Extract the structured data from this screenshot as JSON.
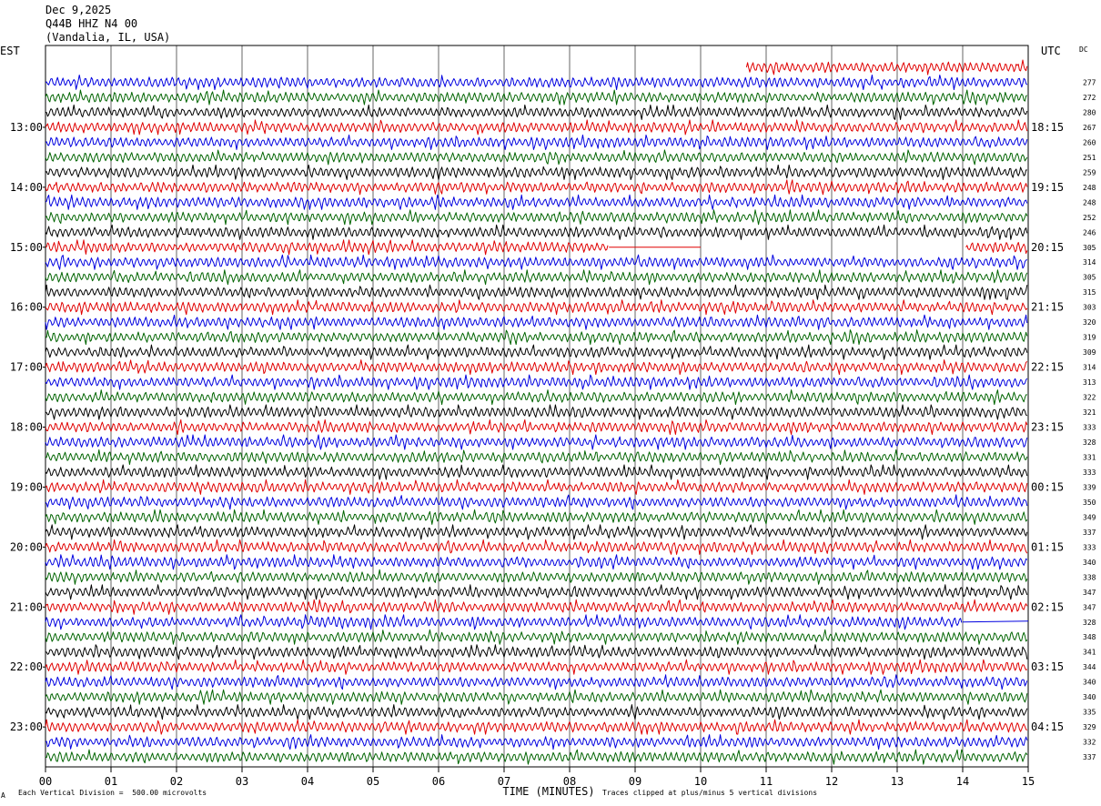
{
  "header": {
    "date": "Dec 9,2025",
    "station": "Q44B HHZ N4 00",
    "location": "(Vandalia, IL, USA)"
  },
  "left_zone": "EST",
  "right_zone": "UTC",
  "dc_label": "DC",
  "footer": {
    "scale_note": "Each Vertical Division =  500.00 microvolts",
    "clip_note": "Traces clipped at plus/minus 5 vertical divisions",
    "corner_mark": "A"
  },
  "chart_data": {
    "type": "line",
    "title": "",
    "xlabel": "TIME (MINUTES)",
    "ylabel": "",
    "xlim": [
      0,
      15
    ],
    "x_ticks": [
      "00",
      "01",
      "02",
      "03",
      "04",
      "05",
      "06",
      "07",
      "08",
      "09",
      "10",
      "11",
      "12",
      "13",
      "14",
      "15"
    ],
    "row_count": 47,
    "trace_colors": [
      "#000000",
      "#e00000",
      "#0000e0",
      "#006400"
    ],
    "left_hour_labels": [
      "13:00",
      "14:00",
      "15:00",
      "16:00",
      "17:00",
      "18:00",
      "19:00",
      "20:00",
      "21:00",
      "22:00",
      "23:00"
    ],
    "right_hour_labels": [
      "18:15",
      "19:15",
      "20:15",
      "21:15",
      "22:15",
      "23:15",
      "00:15",
      "01:15",
      "02:15",
      "03:15",
      "04:15"
    ],
    "hour_label_first_row": 4,
    "rows_per_hour": 4,
    "dc_values": [
      277,
      272,
      280,
      267,
      260,
      251,
      259,
      248,
      248,
      252,
      246,
      305,
      314,
      305,
      315,
      303,
      320,
      319,
      309,
      314,
      313,
      322,
      321,
      333,
      328,
      331,
      333,
      339,
      350,
      349,
      337,
      333,
      340,
      338,
      347,
      347,
      328,
      348,
      341,
      344,
      340,
      340,
      335,
      329,
      332,
      337
    ],
    "partial_first_row_start_minute": 10.7,
    "gaps": [
      {
        "row": 12,
        "from_minute": 8.6,
        "to_minute": 14.05,
        "flat_until_minute": 10.0
      },
      {
        "row": 37,
        "from_minute": 14.0,
        "to_minute": 15.0,
        "flat_until_minute": 15.0
      }
    ]
  }
}
